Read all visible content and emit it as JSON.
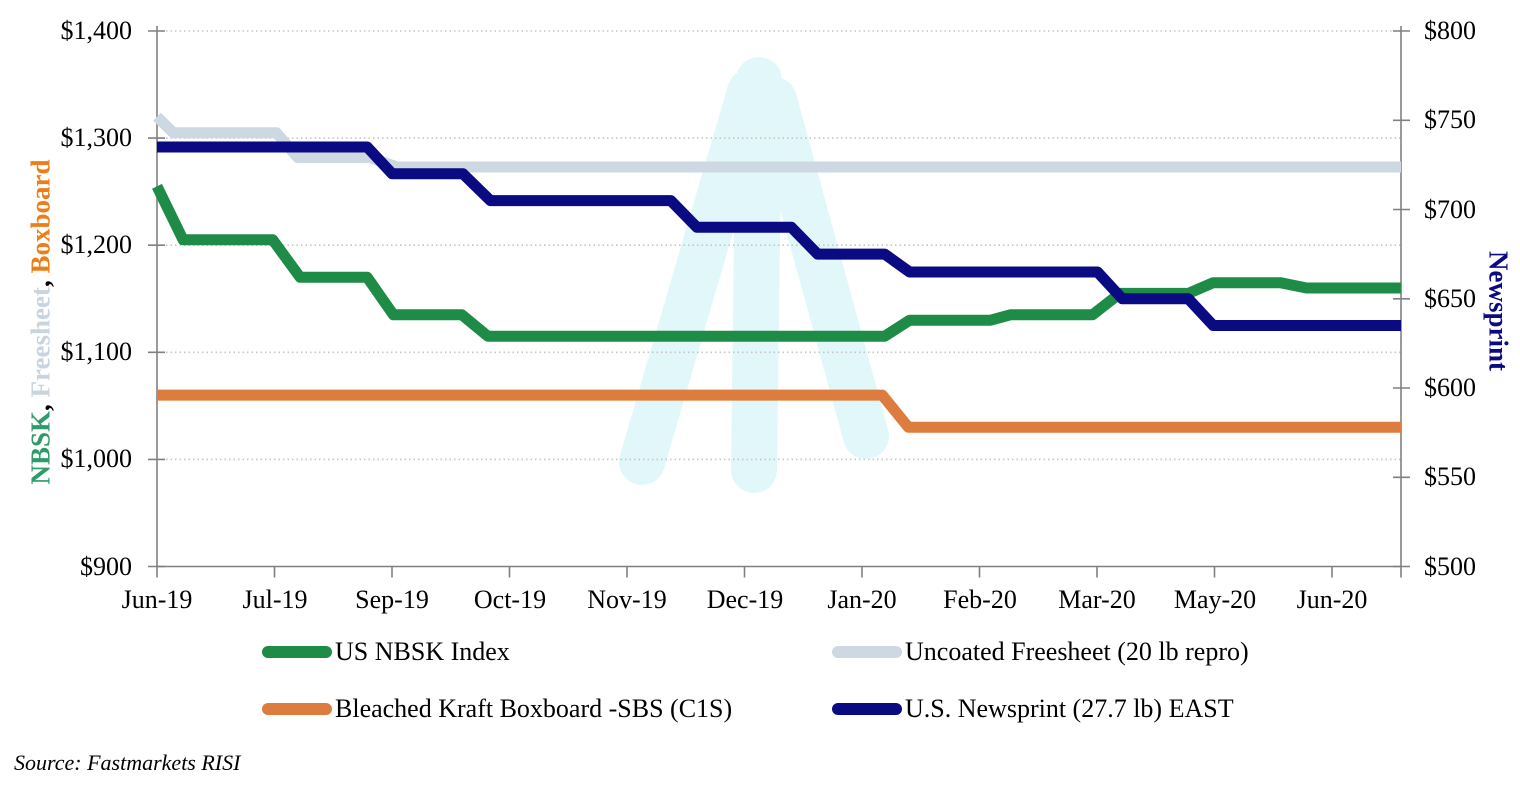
{
  "chart_data": {
    "type": "line",
    "title": "",
    "grid": "horizontal-dotted",
    "legend_position": "bottom",
    "x_axis": {
      "labels": [
        "Jun-19",
        "Jul-19",
        "Sep-19",
        "Oct-19",
        "Nov-19",
        "Dec-19",
        "Jan-20",
        "Feb-20",
        "Mar-20",
        "May-20",
        "Jun-20"
      ]
    },
    "left_axis": {
      "title_parts": [
        {
          "text": "NBSK",
          "color": "#2E9B6B"
        },
        {
          "text": "Freesheet",
          "color": "#C9D4DE"
        },
        {
          "text": "Boxboard",
          "color": "#EE7D17"
        }
      ],
      "separator": ", ",
      "min": 900,
      "max": 1400,
      "tick_labels": [
        "$1,400",
        "$1,300",
        "$1,200",
        "$1,100",
        "$1,000",
        "$900"
      ],
      "tick_values": [
        1400,
        1300,
        1200,
        1100,
        1000,
        900
      ]
    },
    "right_axis": {
      "title": "Newsprint",
      "title_color": "#0A0A82",
      "min": 500,
      "max": 800,
      "tick_labels": [
        "$800",
        "$750",
        "$700",
        "$650",
        "$600",
        "$550",
        "$500"
      ],
      "tick_values": [
        800,
        750,
        700,
        650,
        600,
        550,
        500
      ]
    },
    "series": [
      {
        "name": "US NBSK Index",
        "axis": "left",
        "color": "#1E8B47",
        "points": [
          [
            0,
            1255
          ],
          [
            0.021,
            1205
          ],
          [
            0.093,
            1205
          ],
          [
            0.115,
            1170
          ],
          [
            0.169,
            1170
          ],
          [
            0.19,
            1135
          ],
          [
            0.245,
            1135
          ],
          [
            0.266,
            1115
          ],
          [
            0.585,
            1115
          ],
          [
            0.605,
            1130
          ],
          [
            0.67,
            1130
          ],
          [
            0.686,
            1135
          ],
          [
            0.752,
            1135
          ],
          [
            0.774,
            1155
          ],
          [
            0.829,
            1155
          ],
          [
            0.849,
            1165
          ],
          [
            0.903,
            1165
          ],
          [
            0.924,
            1160
          ],
          [
            1,
            1160
          ]
        ]
      },
      {
        "name": "Uncoated Freesheet (20 lb repro)",
        "axis": "left",
        "color": "#CDD8E2",
        "points": [
          [
            0,
            1320
          ],
          [
            0.013,
            1305
          ],
          [
            0.096,
            1305
          ],
          [
            0.113,
            1282
          ],
          [
            0.171,
            1282
          ],
          [
            0.193,
            1273
          ],
          [
            1,
            1273
          ]
        ]
      },
      {
        "name": "Bleached Kraft Boxboard -SBS (C1S)",
        "axis": "left",
        "color": "#DC7D3F",
        "points": [
          [
            0,
            1060
          ],
          [
            0.583,
            1060
          ],
          [
            0.604,
            1030
          ],
          [
            1,
            1030
          ]
        ]
      },
      {
        "name": "U.S. Newsprint (27.7 lb) EAST",
        "axis": "right",
        "color": "#0A0A82",
        "points": [
          [
            0,
            735
          ],
          [
            0.169,
            735
          ],
          [
            0.189,
            720
          ],
          [
            0.246,
            720
          ],
          [
            0.268,
            705
          ],
          [
            0.413,
            705
          ],
          [
            0.434,
            690
          ],
          [
            0.51,
            690
          ],
          [
            0.531,
            675
          ],
          [
            0.585,
            675
          ],
          [
            0.605,
            665
          ],
          [
            0.756,
            665
          ],
          [
            0.776,
            650
          ],
          [
            0.829,
            650
          ],
          [
            0.849,
            635
          ],
          [
            1,
            635
          ]
        ]
      }
    ]
  },
  "source": "Source:  Fastmarkets RISI",
  "colors": {
    "axis_line": "#808080",
    "gridline": "#C6C6C6",
    "watermark": "#E2F7F9",
    "text": "#000000"
  }
}
